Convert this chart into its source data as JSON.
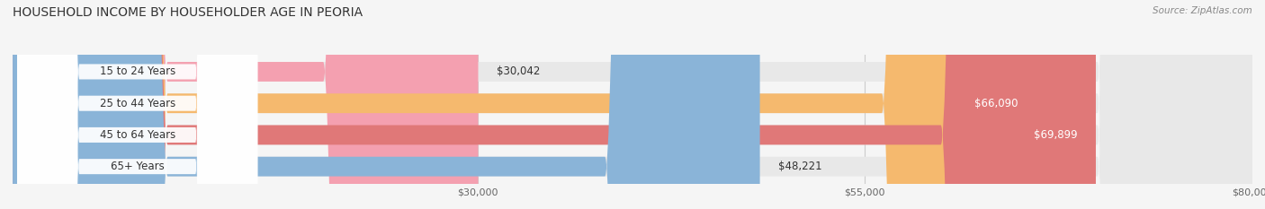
{
  "title": "HOUSEHOLD INCOME BY HOUSEHOLDER AGE IN PEORIA",
  "source": "Source: ZipAtlas.com",
  "categories": [
    "15 to 24 Years",
    "25 to 44 Years",
    "45 to 64 Years",
    "65+ Years"
  ],
  "values": [
    30042,
    66090,
    69899,
    48221
  ],
  "bar_colors": [
    "#f4a0b0",
    "#f5b96e",
    "#e07878",
    "#8ab4d8"
  ],
  "value_labels": [
    "$30,042",
    "$66,090",
    "$69,899",
    "$48,221"
  ],
  "xmin": 0,
  "xmax": 80000,
  "xticks": [
    30000,
    55000,
    80000
  ],
  "xtick_labels": [
    "$30,000",
    "$55,000",
    "$80,000"
  ],
  "bg_color": "#f5f5f5",
  "bar_bg_color": "#e8e8e8",
  "title_fontsize": 10,
  "source_fontsize": 7.5,
  "bar_height": 0.62,
  "figwidth": 14.06,
  "figheight": 2.33,
  "dpi": 100
}
